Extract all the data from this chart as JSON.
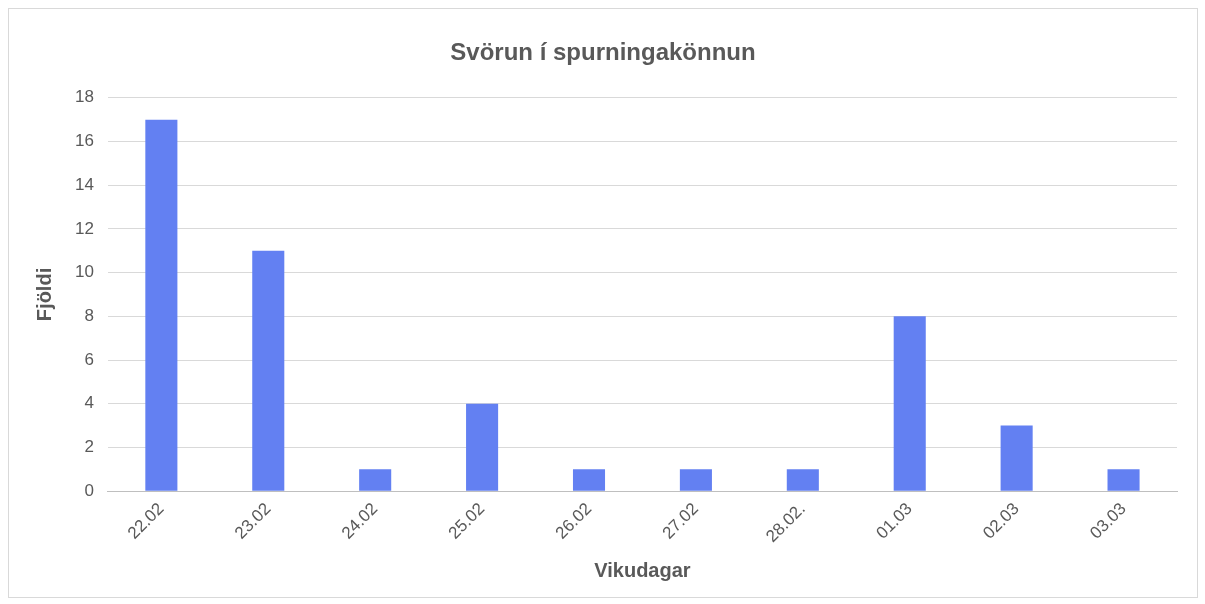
{
  "chart_data": {
    "type": "bar",
    "title": "Svörun í spurningakönnun",
    "xlabel": "Vikudagar",
    "ylabel": "Fjöldi",
    "categories": [
      "22.02",
      "23.02",
      "24.02",
      "25.02",
      "26.02",
      "27.02",
      "28.02.",
      "01.03",
      "02.03",
      "03.03"
    ],
    "values": [
      17,
      11,
      1,
      4,
      1,
      1,
      1,
      8,
      3,
      1
    ],
    "color": "#6380f2",
    "ylim": [
      0,
      18
    ],
    "yticks": [
      0,
      2,
      4,
      6,
      8,
      10,
      12,
      14,
      16,
      18
    ],
    "grid": "y",
    "legend": false
  }
}
